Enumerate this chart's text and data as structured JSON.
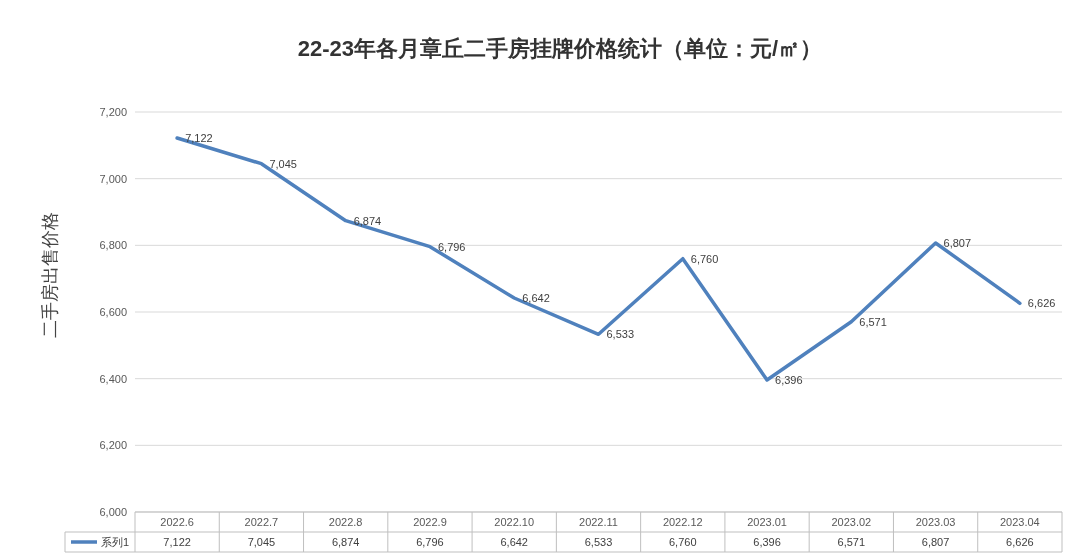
{
  "chart_data": {
    "type": "line",
    "title": "22-23年各月章丘二手房挂牌价格统计（单位：元/㎡）",
    "ylabel": "二手房出售价格",
    "categories": [
      "2022.6",
      "2022.7",
      "2022.8",
      "2022.9",
      "2022.10",
      "2022.11",
      "2022.12",
      "2023.01",
      "2023.02",
      "2023.03",
      "2023.04"
    ],
    "series": [
      {
        "name": "系列1",
        "color": "#4f81bd",
        "values": [
          7122,
          7045,
          6874,
          6796,
          6642,
          6533,
          6760,
          6396,
          6571,
          6807,
          6626
        ],
        "value_labels": [
          "7,122",
          "7,045",
          "6,874",
          "6,796",
          "6,642",
          "6,533",
          "6,760",
          "6,396",
          "6,571",
          "6,807",
          "6,626"
        ]
      }
    ],
    "ylim": [
      6000,
      7200
    ],
    "yticks": [
      {
        "value": 6000,
        "label": "6,000"
      },
      {
        "value": 6200,
        "label": "6,200"
      },
      {
        "value": 6400,
        "label": "6,400"
      },
      {
        "value": 6600,
        "label": "6,600"
      },
      {
        "value": 6800,
        "label": "6,800"
      },
      {
        "value": 7000,
        "label": "7,000"
      },
      {
        "value": 7200,
        "label": "7,200"
      }
    ],
    "grid": "y",
    "legend": "bottom",
    "marker": "none",
    "line_style": "solid"
  }
}
